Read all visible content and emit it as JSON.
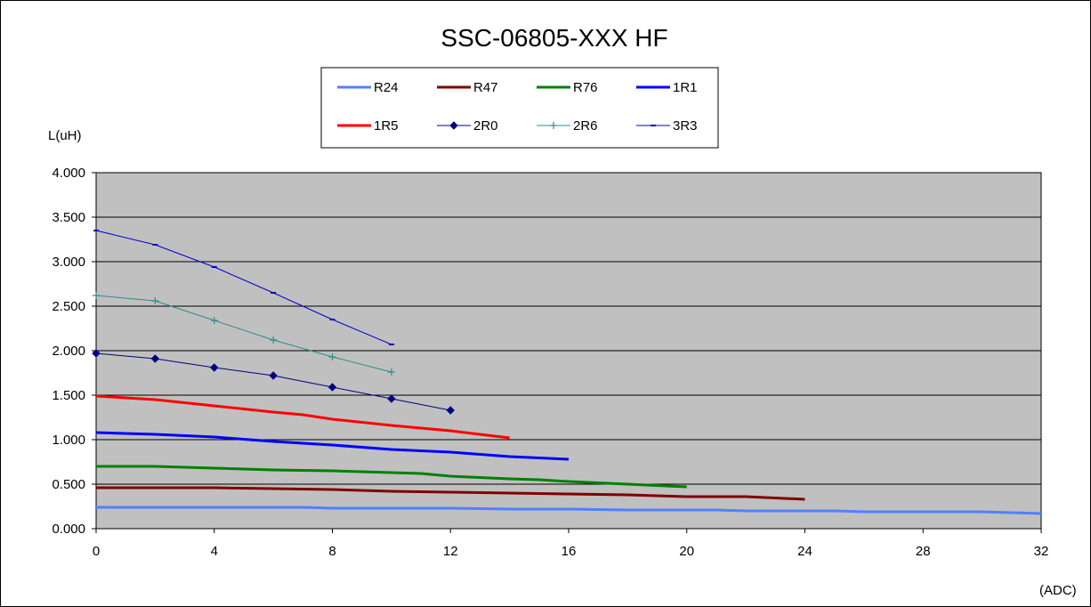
{
  "chart_data": {
    "type": "line",
    "title": "SSC-06805-XXX HF",
    "ylabel": "L(uH)",
    "xlabel": "(ADC)",
    "xlim": [
      0,
      32
    ],
    "ylim": [
      0,
      4
    ],
    "xticks": [
      "0",
      "4",
      "8",
      "12",
      "16",
      "20",
      "24",
      "28",
      "32"
    ],
    "yticks": [
      "0.000",
      "0.500",
      "1.000",
      "1.500",
      "2.000",
      "2.500",
      "3.000",
      "3.500",
      "4.000"
    ],
    "grid": true,
    "plot_background": "#c0c0c0",
    "legend_position": "top",
    "series": [
      {
        "name": "R24",
        "color": "#4f81ff",
        "marker": "none",
        "width": 3,
        "x": [
          0,
          2,
          4,
          6,
          7,
          8,
          10,
          12,
          14,
          16,
          18,
          20,
          21,
          22,
          24,
          25,
          26,
          28,
          30,
          32
        ],
        "y": [
          0.24,
          0.24,
          0.24,
          0.24,
          0.24,
          0.23,
          0.23,
          0.23,
          0.22,
          0.22,
          0.21,
          0.21,
          0.21,
          0.2,
          0.2,
          0.2,
          0.19,
          0.19,
          0.19,
          0.17
        ]
      },
      {
        "name": "R47",
        "color": "#800000",
        "marker": "none",
        "width": 3,
        "x": [
          0,
          2,
          4,
          6,
          8,
          10,
          12,
          14,
          16,
          18,
          20,
          22,
          24
        ],
        "y": [
          0.46,
          0.46,
          0.46,
          0.45,
          0.44,
          0.42,
          0.41,
          0.4,
          0.39,
          0.38,
          0.36,
          0.36,
          0.33
        ]
      },
      {
        "name": "R76",
        "color": "#008000",
        "marker": "none",
        "width": 3,
        "x": [
          0,
          2,
          4,
          6,
          8,
          10,
          11,
          12,
          14,
          15,
          16,
          18,
          20
        ],
        "y": [
          0.7,
          0.7,
          0.68,
          0.66,
          0.65,
          0.63,
          0.62,
          0.59,
          0.56,
          0.55,
          0.53,
          0.5,
          0.47
        ]
      },
      {
        "name": "1R1",
        "color": "#0000ff",
        "marker": "none",
        "width": 3,
        "x": [
          0,
          2,
          4,
          6,
          8,
          10,
          12,
          14,
          16
        ],
        "y": [
          1.08,
          1.06,
          1.03,
          0.98,
          0.94,
          0.89,
          0.86,
          0.81,
          0.78
        ]
      },
      {
        "name": "1R5",
        "color": "#ff0000",
        "marker": "none",
        "width": 3,
        "x": [
          0,
          2,
          4,
          6,
          7,
          8,
          10,
          12,
          14
        ],
        "y": [
          1.49,
          1.45,
          1.38,
          1.31,
          1.28,
          1.23,
          1.16,
          1.1,
          1.02
        ]
      },
      {
        "name": "2R0",
        "color": "#000080",
        "marker": "diamond",
        "width": 1,
        "x": [
          0,
          2,
          4,
          6,
          8,
          10,
          12
        ],
        "y": [
          1.97,
          1.91,
          1.81,
          1.72,
          1.59,
          1.46,
          1.33
        ]
      },
      {
        "name": "2R6",
        "color": "#2e8b8b",
        "marker": "plus",
        "width": 1,
        "x": [
          0,
          2,
          4,
          6,
          8,
          10
        ],
        "y": [
          2.62,
          2.56,
          2.34,
          2.12,
          1.93,
          1.76
        ]
      },
      {
        "name": "3R3",
        "color": "#0000cc",
        "marker": "dash",
        "width": 1,
        "x": [
          0,
          2,
          4,
          6,
          8,
          10
        ],
        "y": [
          3.35,
          3.19,
          2.94,
          2.65,
          2.35,
          2.07
        ]
      }
    ]
  }
}
